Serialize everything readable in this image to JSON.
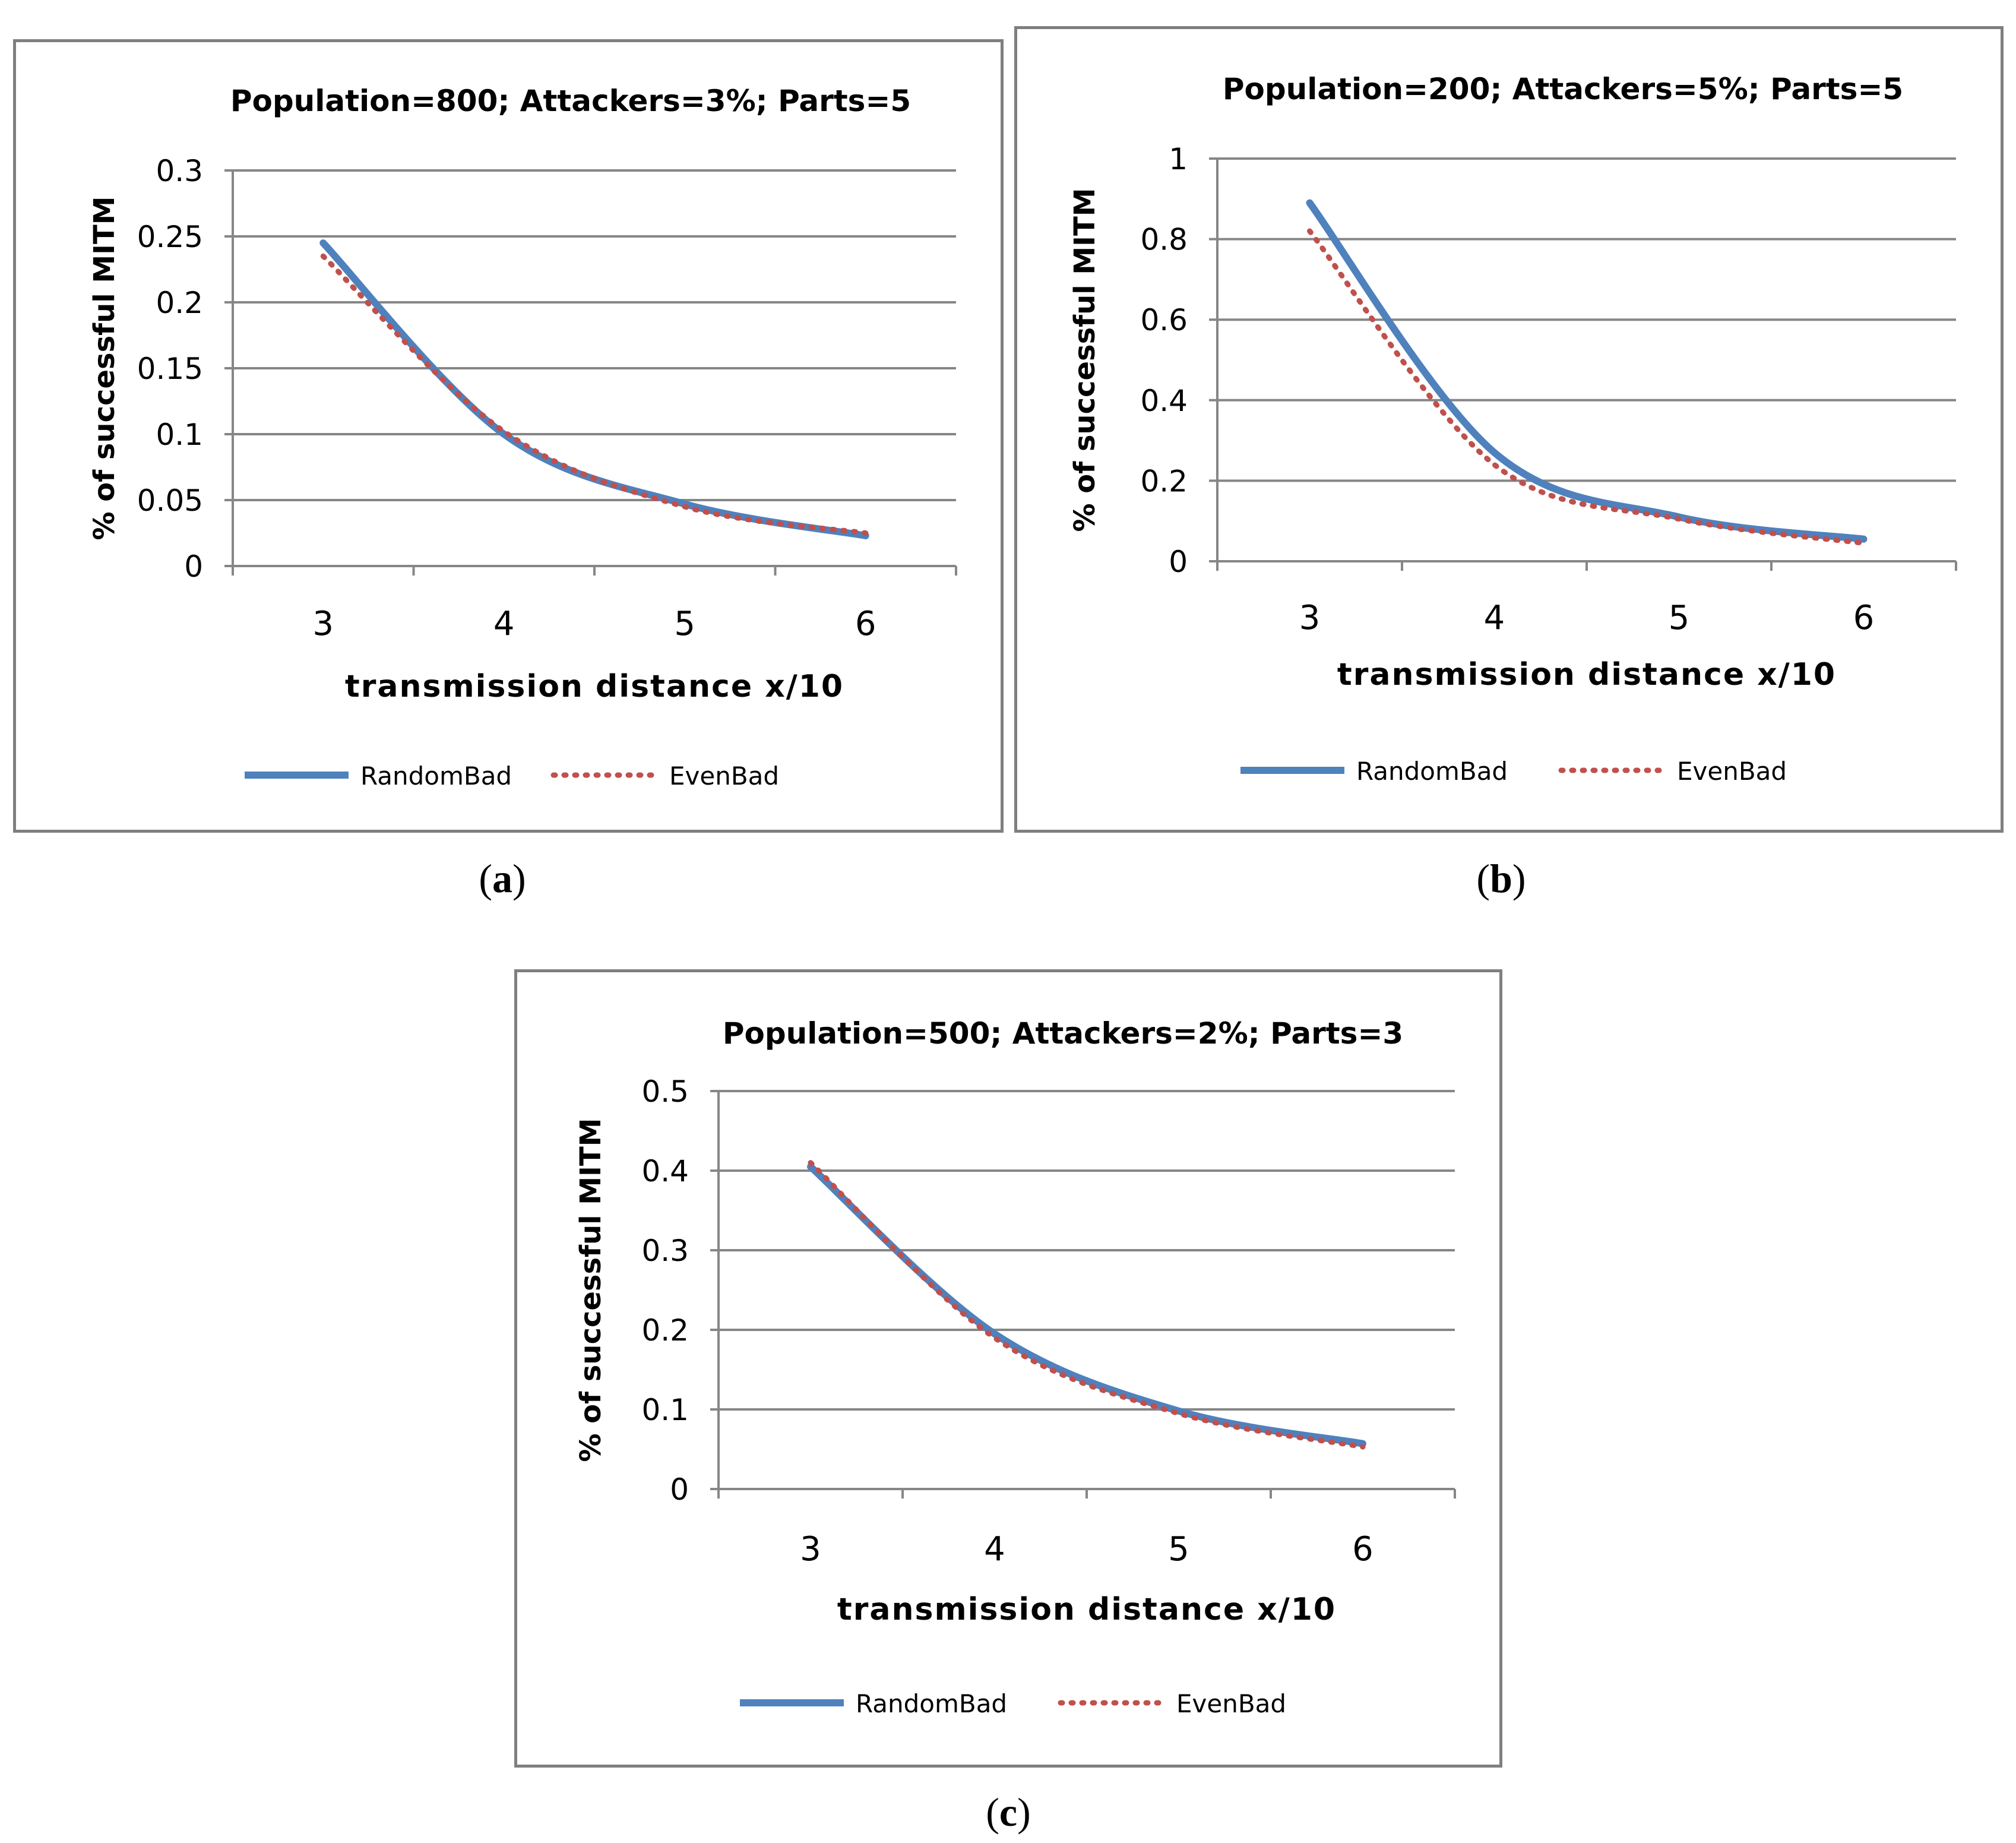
{
  "chart_data": [
    {
      "id": "a",
      "caption": "a",
      "type": "line",
      "title": "Population=800; Attackers=3%; Parts=5",
      "xlabel": "transmission distance x/10",
      "ylabel": "% of successful MITM",
      "categories": [
        "3",
        "4",
        "5",
        "6"
      ],
      "ylim": [
        0,
        0.3
      ],
      "yticks": [
        "0",
        "0.05",
        "0.1",
        "0.15",
        "0.2",
        "0.25",
        "0.3"
      ],
      "legend_position": "bottom",
      "series": [
        {
          "name": "RandomBad",
          "style": "solid",
          "color": "#4f81bd",
          "values": [
            0.245,
            0.1,
            0.047,
            0.023
          ]
        },
        {
          "name": "EvenBad",
          "style": "dotted",
          "color": "#c0504d",
          "values": [
            0.235,
            0.102,
            0.045,
            0.025
          ]
        }
      ]
    },
    {
      "id": "b",
      "caption": "b",
      "type": "line",
      "title": "Population=200; Attackers=5%; Parts=5",
      "xlabel": "transmission distance x/10",
      "ylabel": "% of successful MITM",
      "categories": [
        "3",
        "4",
        "5",
        "6"
      ],
      "ylim": [
        0,
        1
      ],
      "yticks": [
        "0",
        "0.2",
        "0.4",
        "0.6",
        "0.8",
        "1"
      ],
      "legend_position": "bottom",
      "series": [
        {
          "name": "RandomBad",
          "style": "solid",
          "color": "#4f81bd",
          "values": [
            0.89,
            0.27,
            0.11,
            0.055
          ]
        },
        {
          "name": "EvenBad",
          "style": "dotted",
          "color": "#c0504d",
          "values": [
            0.82,
            0.24,
            0.105,
            0.045
          ]
        }
      ]
    },
    {
      "id": "c",
      "caption": "c",
      "type": "line",
      "title": "Population=500; Attackers=2%; Parts=3",
      "xlabel": "transmission distance x/10",
      "ylabel": "% of successful MITM",
      "categories": [
        "3",
        "4",
        "5",
        "6"
      ],
      "ylim": [
        0,
        0.5
      ],
      "yticks": [
        "0",
        "0.1",
        "0.2",
        "0.3",
        "0.4",
        "0.5"
      ],
      "legend_position": "bottom",
      "series": [
        {
          "name": "RandomBad",
          "style": "solid",
          "color": "#4f81bd",
          "values": [
            0.405,
            0.195,
            0.098,
            0.057
          ]
        },
        {
          "name": "EvenBad",
          "style": "dotted",
          "color": "#c0504d",
          "values": [
            0.41,
            0.19,
            0.095,
            0.053
          ]
        }
      ]
    }
  ]
}
